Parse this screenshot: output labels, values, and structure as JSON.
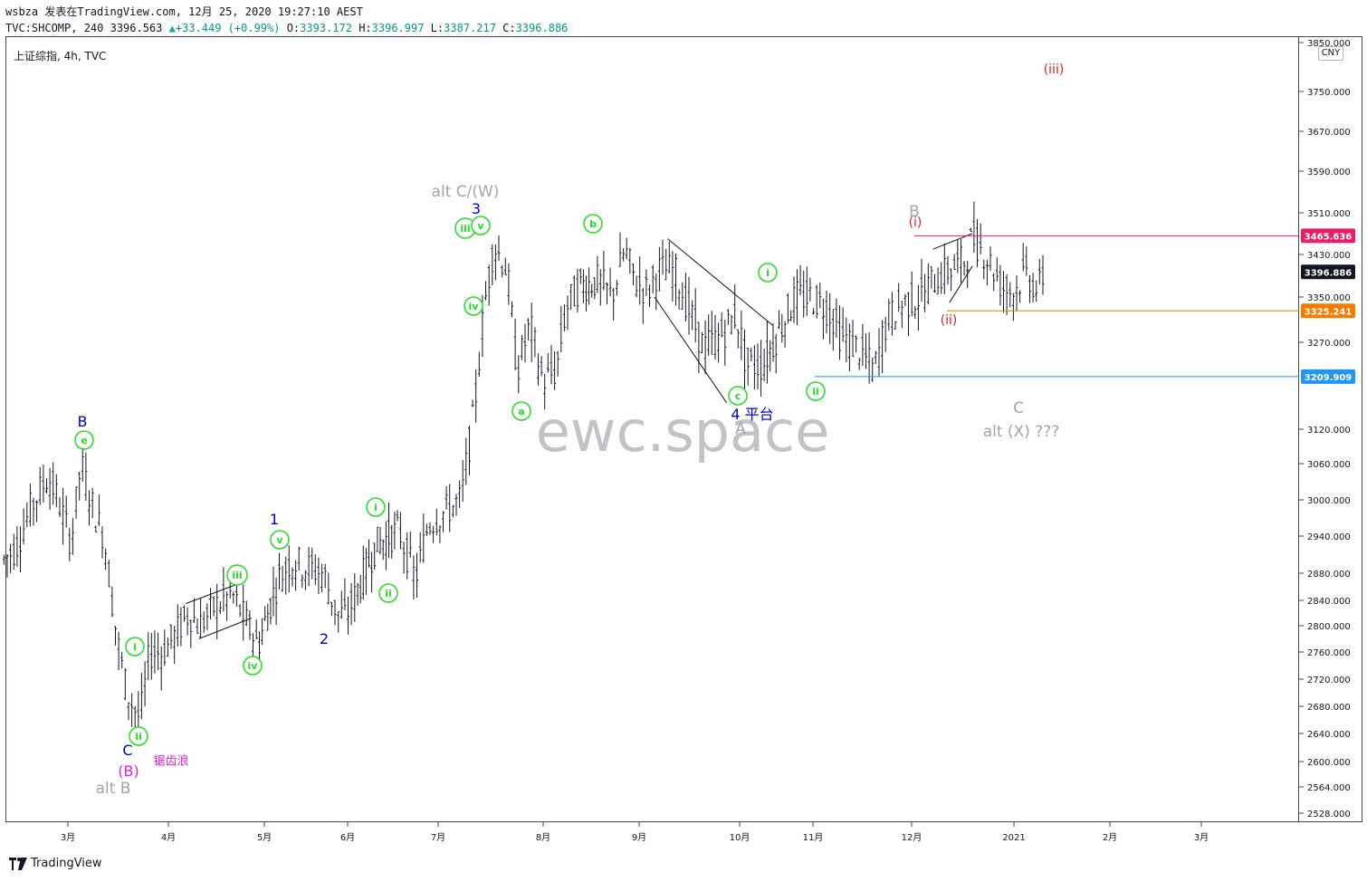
{
  "header": {
    "user": "wsbza",
    "published": "发表在TradingView.com, 12月 25, 2020 19:27:10 AEST",
    "symbol": "TVC:SHCOMP, 240",
    "last": "3396.563",
    "change": "+33.449 (+0.99%)",
    "open_label": "O:",
    "open": "3393.172",
    "high_label": "H:",
    "high": "3396.997",
    "low_label": "L:",
    "low": "3387.217",
    "close_label": "C:",
    "close": "3396.886"
  },
  "chart_title": "上证综指, 4h, TVC",
  "currency": "CNY",
  "watermark": "ewc.space",
  "footer_brand": "TradingView",
  "colors": {
    "candle": "#131722",
    "green_label": "#22dd22",
    "blue_label": "#0000cc",
    "grey_label": "#a0a4ab",
    "red_label": "#dd2222",
    "magenta_label": "#dd22dd",
    "line_red": "#e91e63",
    "line_orange": "#f57c00",
    "line_blue": "#2196f3",
    "label_dark": "#131722"
  },
  "chart_data": {
    "type": "line",
    "scale": "log",
    "ylim": [
      2500,
      3850
    ],
    "y_ticks": [
      "3850.000",
      "3750.000",
      "3670.000",
      "3590.000",
      "3510.000",
      "3430.000",
      "3350.000",
      "3270.000",
      "3209.909",
      "3120.000",
      "3060.000",
      "3000.000",
      "2940.000",
      "2880.000",
      "2840.000",
      "2800.000",
      "2760.000",
      "2720.000",
      "2680.000",
      "2640.000",
      "2600.000",
      "2564.000",
      "2528.000"
    ],
    "x_ticks": [
      "3月",
      "4月",
      "5月",
      "6月",
      "7月",
      "8月",
      "9月",
      "10月",
      "11月",
      "12月",
      "2021",
      "2月",
      "3月"
    ],
    "series": [
      {
        "values": [
          [
            "2020-02-10",
            2900
          ],
          [
            "2020-02-14",
            2920
          ],
          [
            "2020-02-19",
            2990
          ],
          [
            "2020-02-24",
            3040
          ],
          [
            "2020-02-27",
            3000
          ],
          [
            "2020-03-02",
            2930
          ],
          [
            "2020-03-05",
            3060
          ],
          [
            "2020-03-09",
            2980
          ],
          [
            "2020-03-12",
            2940
          ],
          [
            "2020-03-16",
            2780
          ],
          [
            "2020-03-19",
            2700
          ],
          [
            "2020-03-23",
            2660
          ],
          [
            "2020-03-26",
            2760
          ],
          [
            "2020-03-30",
            2760
          ],
          [
            "2020-04-02",
            2780
          ],
          [
            "2020-04-07",
            2820
          ],
          [
            "2020-04-10",
            2800
          ],
          [
            "2020-04-15",
            2830
          ],
          [
            "2020-04-20",
            2850
          ],
          [
            "2020-04-23",
            2820
          ],
          [
            "2020-04-28",
            2770
          ],
          [
            "2020-05-04",
            2870
          ],
          [
            "2020-05-08",
            2900
          ],
          [
            "2020-05-13",
            2890
          ],
          [
            "2020-05-18",
            2880
          ],
          [
            "2020-05-22",
            2820
          ],
          [
            "2020-05-25",
            2815
          ],
          [
            "2020-05-28",
            2850
          ],
          [
            "2020-06-03",
            2925
          ],
          [
            "2020-06-10",
            2950
          ],
          [
            "2020-06-15",
            2870
          ],
          [
            "2020-06-19",
            2960
          ],
          [
            "2020-06-24",
            2980
          ],
          [
            "2020-06-29",
            3000
          ],
          [
            "2020-07-03",
            3150
          ],
          [
            "2020-07-06",
            3330
          ],
          [
            "2020-07-09",
            3450
          ],
          [
            "2020-07-13",
            3400
          ],
          [
            "2020-07-16",
            3220
          ],
          [
            "2020-07-20",
            3300
          ],
          [
            "2020-07-24",
            3200
          ],
          [
            "2020-07-28",
            3220
          ],
          [
            "2020-07-31",
            3330
          ],
          [
            "2020-08-04",
            3370
          ],
          [
            "2020-08-10",
            3380
          ],
          [
            "2020-08-14",
            3350
          ],
          [
            "2020-08-18",
            3440
          ],
          [
            "2020-08-21",
            3380
          ],
          [
            "2020-08-25",
            3360
          ],
          [
            "2020-08-28",
            3400
          ],
          [
            "2020-09-02",
            3400
          ],
          [
            "2020-09-07",
            3320
          ],
          [
            "2020-09-11",
            3260
          ],
          [
            "2020-09-16",
            3280
          ],
          [
            "2020-09-21",
            3320
          ],
          [
            "2020-09-24",
            3230
          ],
          [
            "2020-09-29",
            3230
          ],
          [
            "2020-10-09",
            3350
          ],
          [
            "2020-10-14",
            3350
          ],
          [
            "2020-10-19",
            3330
          ],
          [
            "2020-10-23",
            3280
          ],
          [
            "2020-10-28",
            3260
          ],
          [
            "2020-11-02",
            3220
          ],
          [
            "2020-11-06",
            3310
          ],
          [
            "2020-11-11",
            3340
          ],
          [
            "2020-11-16",
            3350
          ],
          [
            "2020-11-20",
            3380
          ],
          [
            "2020-11-25",
            3400
          ],
          [
            "2020-11-30",
            3420
          ],
          [
            "2020-12-02",
            3465
          ],
          [
            "2020-12-07",
            3420
          ],
          [
            "2020-12-11",
            3370
          ],
          [
            "2020-12-15",
            3360
          ],
          [
            "2020-12-18",
            3400
          ],
          [
            "2020-12-22",
            3360
          ],
          [
            "2020-12-24",
            3396
          ]
        ]
      }
    ],
    "horizontal_lines": [
      {
        "value": 3465.636,
        "label": "3465.636",
        "color": "#e91e63"
      },
      {
        "value": 3396.886,
        "label": "3396.886",
        "color": "#131722"
      },
      {
        "value": 3325.241,
        "label": "3325.241",
        "color": "#f57c00"
      },
      {
        "value": 3209.909,
        "label": "3209.909",
        "color": "#2196f3"
      }
    ],
    "annotations": [
      {
        "text": "B",
        "style": "blue"
      },
      {
        "text": "e",
        "style": "green-circle"
      },
      {
        "text": "i",
        "style": "green-circle"
      },
      {
        "text": "ii",
        "style": "green-circle"
      },
      {
        "text": "C",
        "style": "blue"
      },
      {
        "text": "(B)",
        "style": "magenta"
      },
      {
        "text": "alt B",
        "style": "grey"
      },
      {
        "text": "锯齿浪",
        "style": "magenta-small"
      },
      {
        "text": "iii",
        "style": "green-circle"
      },
      {
        "text": "iv",
        "style": "green-circle"
      },
      {
        "text": "1",
        "style": "blue"
      },
      {
        "text": "v",
        "style": "green-circle"
      },
      {
        "text": "2",
        "style": "blue"
      },
      {
        "text": "i",
        "style": "green-circle"
      },
      {
        "text": "ii",
        "style": "green-circle"
      },
      {
        "text": "alt C/(W)",
        "style": "grey"
      },
      {
        "text": "3",
        "style": "blue"
      },
      {
        "text": "iii",
        "style": "green-circle"
      },
      {
        "text": "v",
        "style": "green-circle"
      },
      {
        "text": "iv",
        "style": "green-circle"
      },
      {
        "text": "a",
        "style": "green-circle"
      },
      {
        "text": "b",
        "style": "green-circle"
      },
      {
        "text": "c",
        "style": "green-circle"
      },
      {
        "text": "4 平台",
        "style": "blue"
      },
      {
        "text": "A",
        "style": "grey"
      },
      {
        "text": "i",
        "style": "green-circle"
      },
      {
        "text": "ii",
        "style": "green-circle"
      },
      {
        "text": "B",
        "style": "grey"
      },
      {
        "text": "(i)",
        "style": "red"
      },
      {
        "text": "(ii)",
        "style": "red"
      },
      {
        "text": "(iii)",
        "style": "red"
      },
      {
        "text": "C",
        "style": "grey"
      },
      {
        "text": "alt (X) ???",
        "style": "grey"
      }
    ]
  }
}
